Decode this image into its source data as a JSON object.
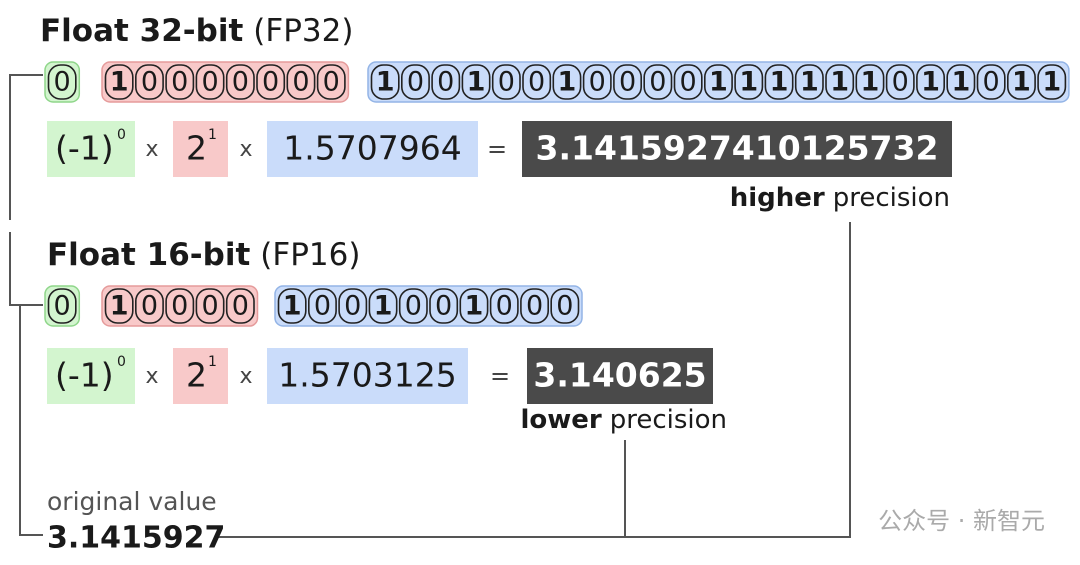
{
  "fp32": {
    "title": "Float 32-bit",
    "tag": "(FP32)",
    "bits": {
      "sign": [
        0
      ],
      "exponent": [
        1,
        0,
        0,
        0,
        0,
        0,
        0,
        0
      ],
      "mantissa": [
        1,
        0,
        0,
        1,
        0,
        0,
        1,
        0,
        0,
        0,
        0,
        1,
        1,
        1,
        1,
        1,
        1,
        0,
        1,
        1,
        0,
        1,
        1
      ]
    },
    "formula": {
      "sign_base": "(-1)",
      "sign_exp": "0",
      "times_1": "x",
      "exp_base": "2",
      "exp_exp": "1",
      "times_2": "x",
      "mantissa": "1.5707964",
      "equals": "=",
      "result": "3.1415927410125732"
    },
    "precision": {
      "strong": "higher",
      "rest": "precision"
    }
  },
  "fp16": {
    "title": "Float 16-bit",
    "tag": "(FP16)",
    "bits": {
      "sign": [
        0
      ],
      "exponent": [
        1,
        0,
        0,
        0,
        0
      ],
      "mantissa": [
        1,
        0,
        0,
        1,
        0,
        0,
        1,
        0,
        0,
        0
      ]
    },
    "formula": {
      "sign_base": "(-1)",
      "sign_exp": "0",
      "times_1": "x",
      "exp_base": "2",
      "exp_exp": "1",
      "times_2": "x",
      "mantissa": "1.5703125",
      "equals": "=",
      "result": "3.140625"
    },
    "precision": {
      "strong": "lower",
      "rest": "precision"
    }
  },
  "original": {
    "label": "original value",
    "value": "3.1415927"
  },
  "watermark": "公众号 · 新智元"
}
